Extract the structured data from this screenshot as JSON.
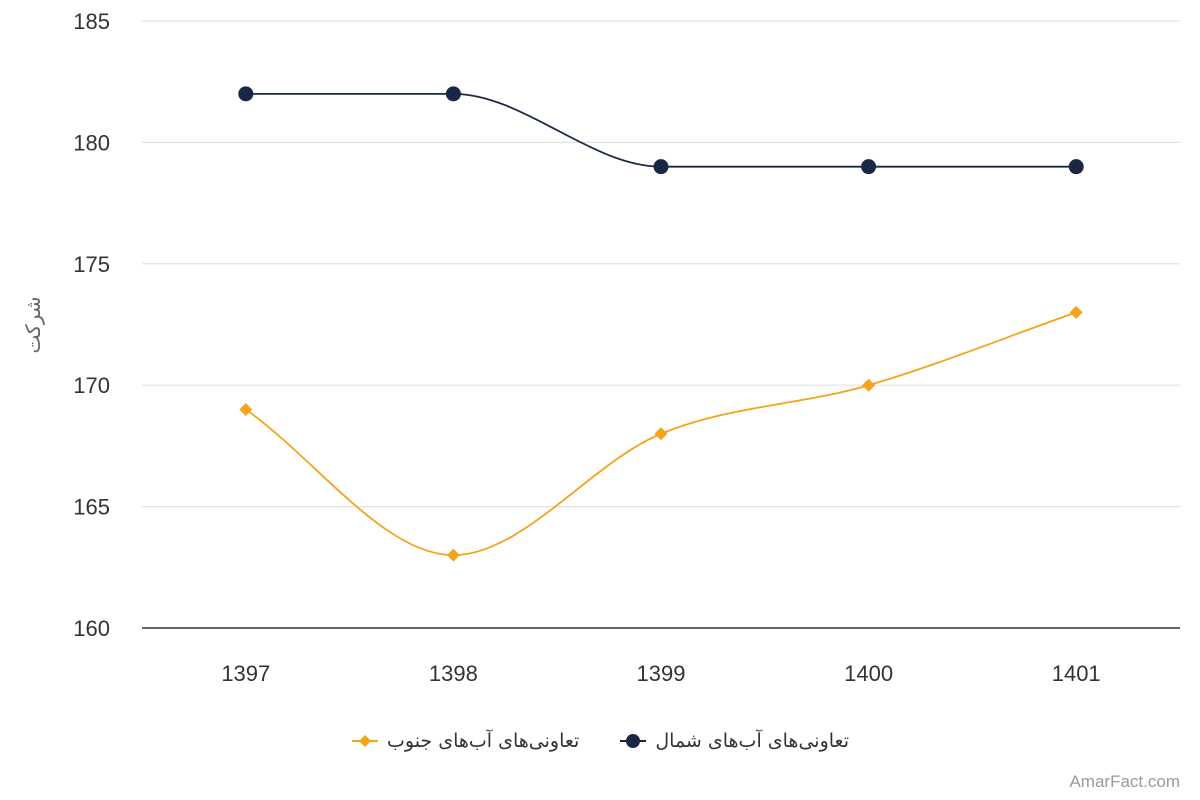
{
  "chart_data": {
    "type": "line",
    "x": [
      "1397",
      "1398",
      "1399",
      "1400",
      "1401"
    ],
    "series": [
      {
        "name": "تعاونی‌های آب‌های شمال",
        "values": [
          182,
          182,
          179,
          179,
          179
        ],
        "color": "#1a2744",
        "marker": "circle"
      },
      {
        "name": "تعاونی‌های آب‌های جنوب",
        "values": [
          169,
          163,
          168,
          170,
          173
        ],
        "color": "#f5a31a",
        "marker": "diamond"
      }
    ],
    "ylabel": "شرکت",
    "ylim": [
      160,
      185
    ],
    "yticks": [
      "160",
      "165",
      "170",
      "175",
      "180",
      "185"
    ],
    "grid": true,
    "smooth": true,
    "legend_position": "bottom"
  },
  "watermark": "AmarFact.com"
}
